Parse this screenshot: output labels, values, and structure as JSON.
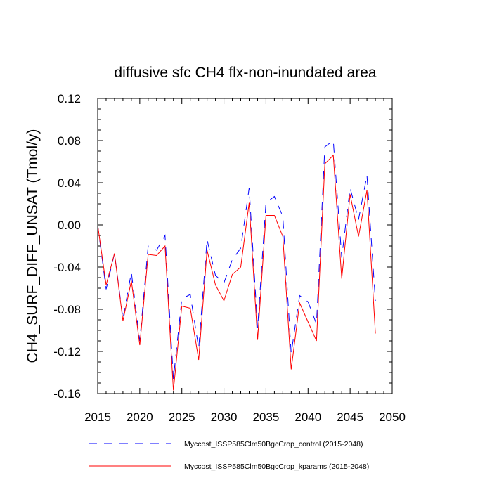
{
  "chart_data": {
    "type": "line",
    "title": "diffusive sfc CH4 flx-non-inundated area",
    "xlabel": "",
    "ylabel": "CH4_SURF_DIFF_UNSAT  (Tmol/y)",
    "xlim": [
      2015,
      2050
    ],
    "ylim": [
      -0.16,
      0.12
    ],
    "xticks": [
      2015,
      2020,
      2025,
      2030,
      2035,
      2040,
      2045,
      2050
    ],
    "xtick_labels": [
      "2015",
      "2020",
      "2025",
      "2030",
      "2035",
      "2040",
      "2045",
      "2050"
    ],
    "yticks": [
      -0.16,
      -0.12,
      -0.08,
      -0.04,
      0.0,
      0.04,
      0.08,
      0.12
    ],
    "ytick_labels": [
      "-0.16",
      "-0.12",
      "-0.08",
      "-0.04",
      "0.00",
      "0.04",
      "0.08",
      "0.12"
    ],
    "grid": false,
    "legend_placement": "bottom",
    "x": [
      2015,
      2016,
      2017,
      2018,
      2019,
      2020,
      2021,
      2022,
      2023,
      2024,
      2025,
      2026,
      2027,
      2028,
      2029,
      2030,
      2031,
      2032,
      2033,
      2034,
      2035,
      2036,
      2037,
      2038,
      2039,
      2040,
      2041,
      2042,
      2043,
      2044,
      2045,
      2046,
      2047,
      2048
    ],
    "series": [
      {
        "name": "Myccost_ISSP585Clm50BgcCrop_control (2015-2048)",
        "color": "#0000ff",
        "style": "dashed",
        "values": [
          0.0,
          -0.061,
          -0.027,
          -0.089,
          -0.045,
          -0.11,
          -0.02,
          -0.024,
          -0.01,
          -0.146,
          -0.07,
          -0.066,
          -0.117,
          -0.014,
          -0.048,
          -0.055,
          -0.033,
          -0.022,
          0.035,
          -0.098,
          0.021,
          0.027,
          0.008,
          -0.122,
          -0.067,
          -0.073,
          -0.094,
          0.074,
          0.08,
          -0.031,
          0.035,
          0.005,
          0.047,
          -0.072
        ]
      },
      {
        "name": "Myccost_ISSP585Clm50BgcCrop_kparams (2015-2048)",
        "color": "#ff0000",
        "style": "solid",
        "values": [
          0.0,
          -0.057,
          -0.027,
          -0.091,
          -0.053,
          -0.114,
          -0.028,
          -0.029,
          -0.02,
          -0.157,
          -0.077,
          -0.079,
          -0.128,
          -0.024,
          -0.057,
          -0.072,
          -0.047,
          -0.04,
          0.021,
          -0.109,
          0.009,
          0.009,
          -0.011,
          -0.137,
          -0.074,
          -0.092,
          -0.11,
          0.058,
          0.066,
          -0.051,
          0.029,
          -0.011,
          0.033,
          -0.103
        ]
      }
    ]
  }
}
